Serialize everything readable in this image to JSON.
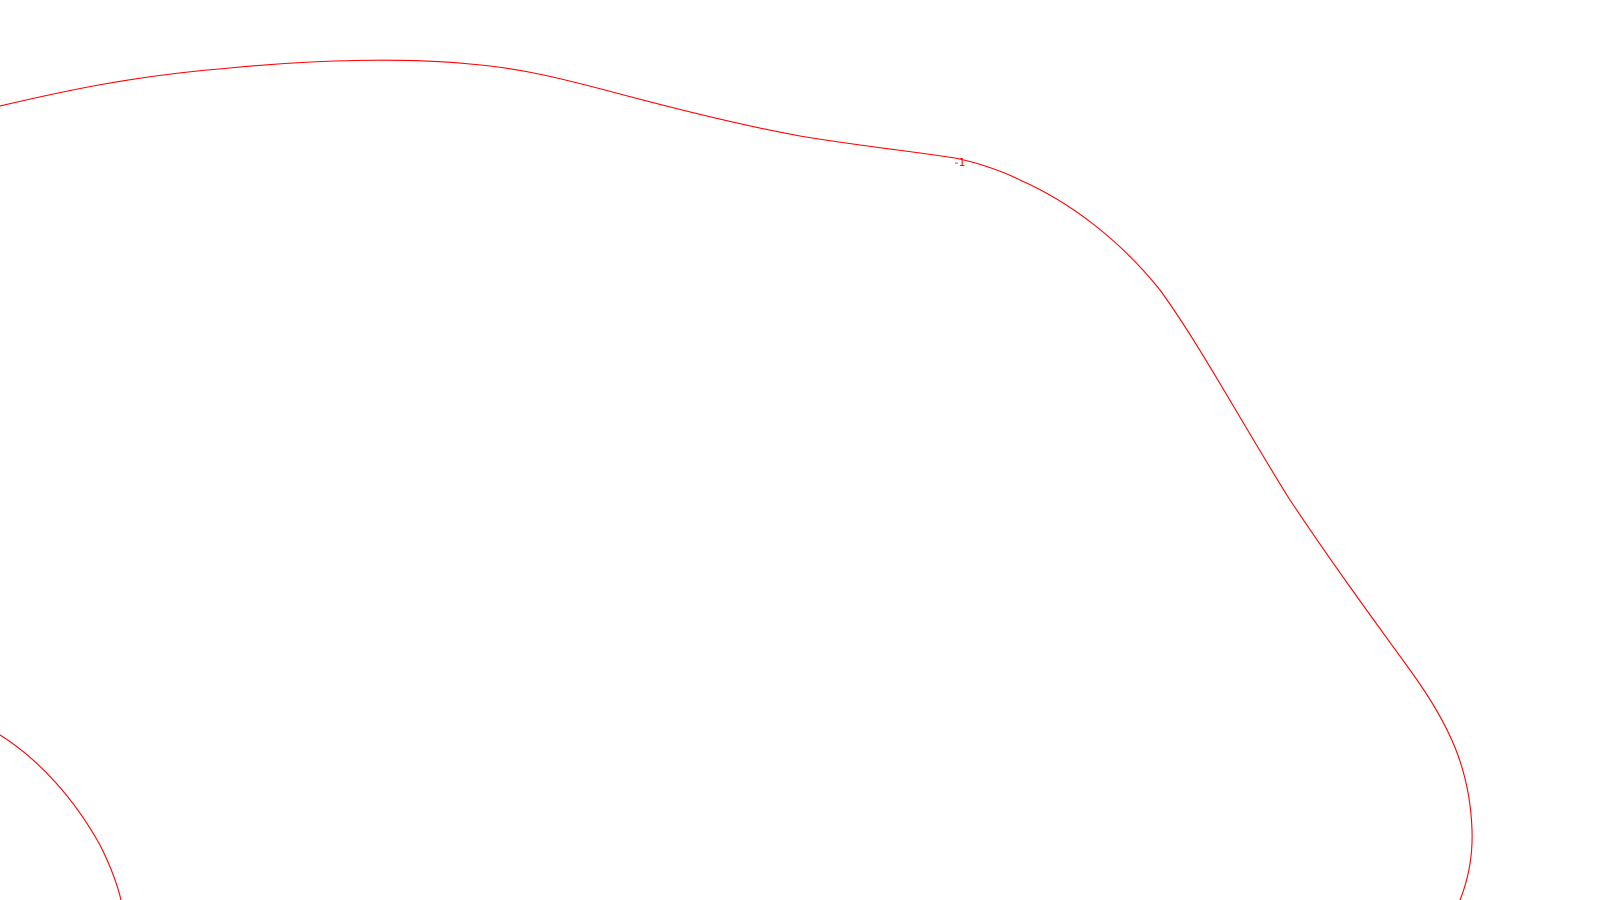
{
  "map": {
    "background_color": "#ffffff",
    "contour_color": "#ff0000",
    "contour_labels": [
      {
        "text": "-1"
      }
    ]
  }
}
